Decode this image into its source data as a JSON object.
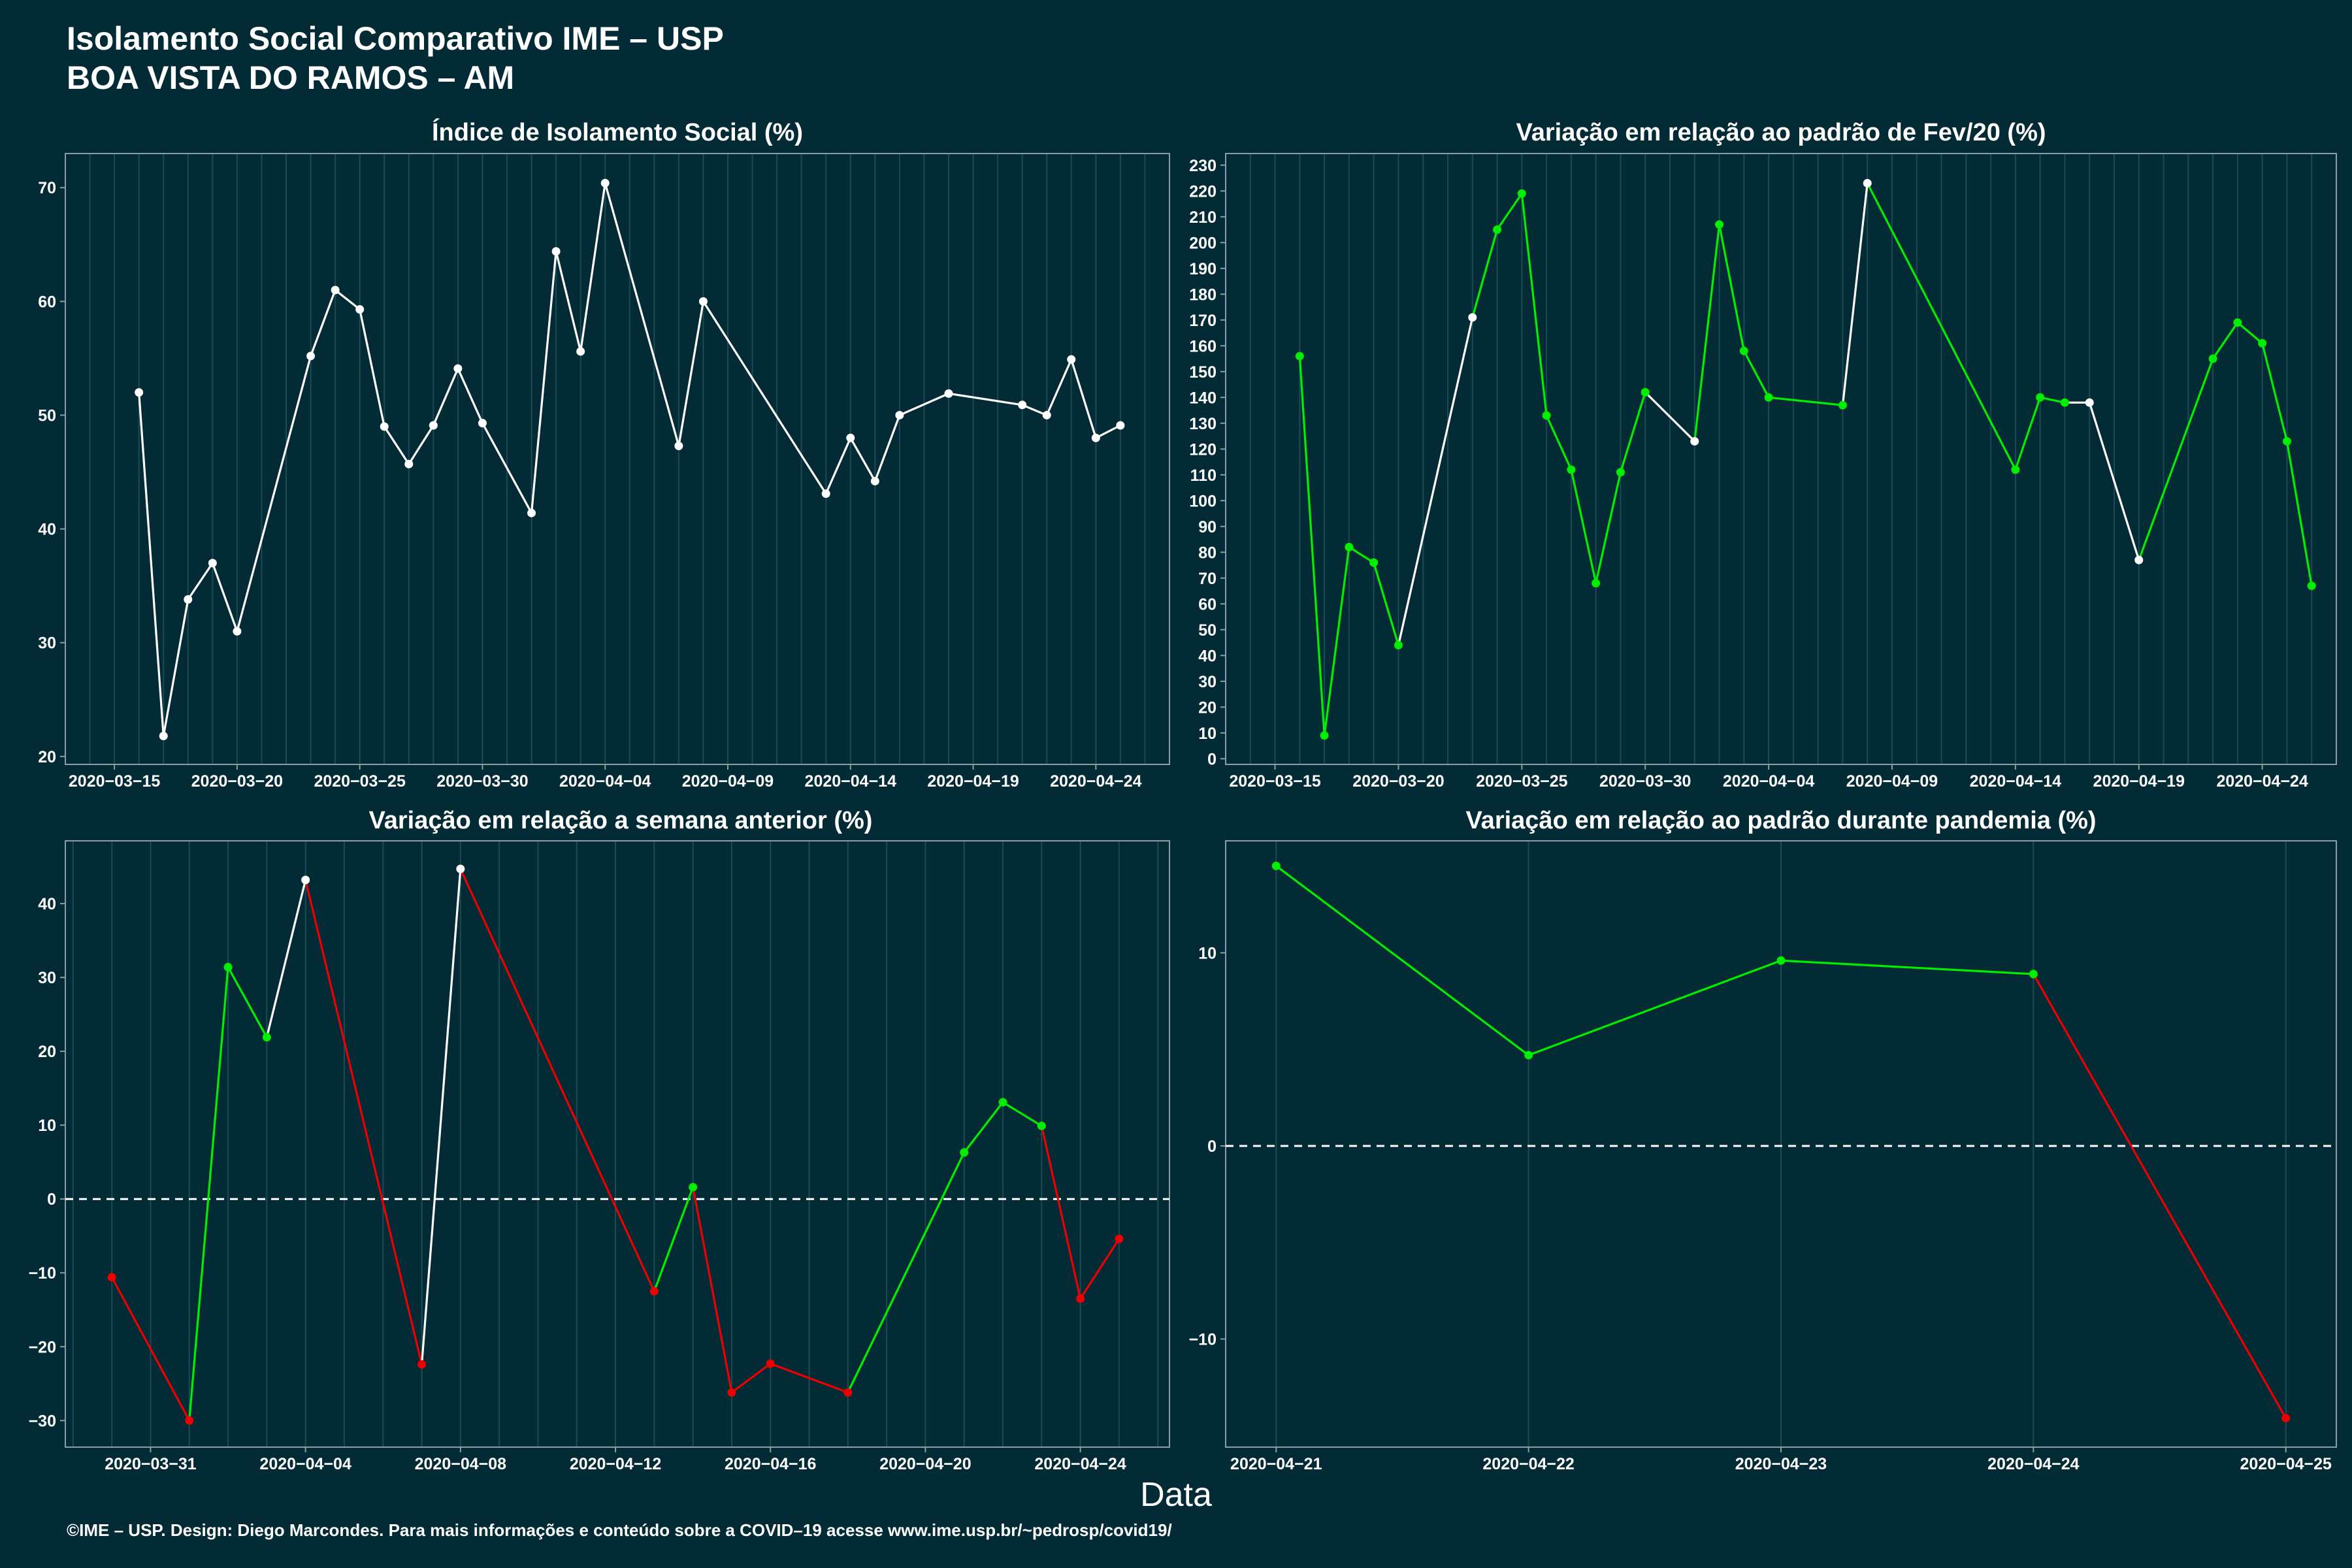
{
  "header": {
    "title": "Isolamento Social Comparativo IME – USP",
    "subtitle": "BOA VISTA DO RAMOS – AM"
  },
  "x_axis_label": "Data",
  "footer": "©IME – USP. Design: Diego Marcondes. Para mais informações e conteúdo sobre a COVID–19 acesse www.ime.usp.br/~pedrosp/covid19/",
  "colors": {
    "background": "#022b35",
    "gridline": "#1b4a54",
    "neutral_line": "#ffffff",
    "positive": "#00ee00",
    "negative": "#ee0000",
    "axis_frame": "#8a9ea3"
  },
  "chart_data": [
    {
      "type": "line",
      "title": "Índice de Isolamento Social (%)",
      "xlabel": "",
      "ylabel": "",
      "x_type": "date",
      "xlim": [
        "2020-03-13",
        "2020-04-27"
      ],
      "ylim": [
        19.3,
        73.0
      ],
      "yticks": [
        20,
        30,
        40,
        50,
        60,
        70
      ],
      "xticks": [
        "2020-03-15",
        "2020-03-20",
        "2020-03-25",
        "2020-03-30",
        "2020-04-04",
        "2020-04-09",
        "2020-04-14",
        "2020-04-19",
        "2020-04-24"
      ],
      "grid": true,
      "dashed_zero_line": false,
      "points": [
        {
          "x": "2020-03-16",
          "y": 52.0,
          "c": "w"
        },
        {
          "x": "2020-03-17",
          "y": 21.8,
          "c": "w"
        },
        {
          "x": "2020-03-18",
          "y": 33.8,
          "c": "w"
        },
        {
          "x": "2020-03-19",
          "y": 37.0,
          "c": "w"
        },
        {
          "x": "2020-03-20",
          "y": 31.0,
          "c": "w"
        },
        {
          "x": "2020-03-23",
          "y": 55.2,
          "c": "w"
        },
        {
          "x": "2020-03-24",
          "y": 61.0,
          "c": "w"
        },
        {
          "x": "2020-03-25",
          "y": 59.3,
          "c": "w"
        },
        {
          "x": "2020-03-26",
          "y": 49.0,
          "c": "w"
        },
        {
          "x": "2020-03-27",
          "y": 45.7,
          "c": "w"
        },
        {
          "x": "2020-03-28",
          "y": 49.1,
          "c": "w"
        },
        {
          "x": "2020-03-29",
          "y": 54.1,
          "c": "w"
        },
        {
          "x": "2020-03-30",
          "y": 49.3,
          "c": "w"
        },
        {
          "x": "2020-04-01",
          "y": 41.4,
          "c": "w"
        },
        {
          "x": "2020-04-02",
          "y": 64.4,
          "c": "w"
        },
        {
          "x": "2020-04-03",
          "y": 55.6,
          "c": "w"
        },
        {
          "x": "2020-04-04",
          "y": 70.4,
          "c": "w"
        },
        {
          "x": "2020-04-07",
          "y": 47.3,
          "c": "w"
        },
        {
          "x": "2020-04-08",
          "y": 60.0,
          "c": "w"
        },
        {
          "x": "2020-04-13",
          "y": 43.1,
          "c": "w"
        },
        {
          "x": "2020-04-14",
          "y": 48.0,
          "c": "w"
        },
        {
          "x": "2020-04-15",
          "y": 44.2,
          "c": "w"
        },
        {
          "x": "2020-04-16",
          "y": 50.0,
          "c": "w"
        },
        {
          "x": "2020-04-18",
          "y": 51.9,
          "c": "w"
        },
        {
          "x": "2020-04-21",
          "y": 50.9,
          "c": "w"
        },
        {
          "x": "2020-04-22",
          "y": 50.0,
          "c": "w"
        },
        {
          "x": "2020-04-23",
          "y": 54.9,
          "c": "w"
        },
        {
          "x": "2020-04-24",
          "y": 48.0,
          "c": "w"
        },
        {
          "x": "2020-04-25",
          "y": 49.1,
          "c": "w"
        }
      ]
    },
    {
      "type": "line",
      "title": "Variação em relação ao padrão de Fev/20 (%)",
      "xlabel": "",
      "ylabel": "",
      "x_type": "date",
      "xlim": [
        "2020-03-13",
        "2020-04-27"
      ],
      "ylim": [
        -2.2,
        234.5
      ],
      "yticks": [
        0,
        10,
        20,
        30,
        40,
        50,
        60,
        70,
        80,
        90,
        100,
        110,
        120,
        130,
        140,
        150,
        160,
        170,
        180,
        190,
        200,
        210,
        220,
        230
      ],
      "xticks": [
        "2020-03-15",
        "2020-03-20",
        "2020-03-25",
        "2020-03-30",
        "2020-04-04",
        "2020-04-09",
        "2020-04-14",
        "2020-04-19",
        "2020-04-24"
      ],
      "grid": true,
      "dashed_zero_line": false,
      "points": [
        {
          "x": "2020-03-16",
          "y": 156,
          "c": "g"
        },
        {
          "x": "2020-03-17",
          "y": 9,
          "c": "g"
        },
        {
          "x": "2020-03-18",
          "y": 82,
          "c": "g"
        },
        {
          "x": "2020-03-19",
          "y": 76,
          "c": "g"
        },
        {
          "x": "2020-03-20",
          "y": 44,
          "c": "g"
        },
        {
          "x": "2020-03-23",
          "y": 171,
          "c": "w"
        },
        {
          "x": "2020-03-24",
          "y": 205,
          "c": "g"
        },
        {
          "x": "2020-03-25",
          "y": 219,
          "c": "g"
        },
        {
          "x": "2020-03-26",
          "y": 133,
          "c": "g"
        },
        {
          "x": "2020-03-27",
          "y": 112,
          "c": "g"
        },
        {
          "x": "2020-03-28",
          "y": 68,
          "c": "g"
        },
        {
          "x": "2020-03-29",
          "y": 111,
          "c": "g"
        },
        {
          "x": "2020-03-30",
          "y": 142,
          "c": "g"
        },
        {
          "x": "2020-04-01",
          "y": 123,
          "c": "w"
        },
        {
          "x": "2020-04-02",
          "y": 207,
          "c": "g"
        },
        {
          "x": "2020-04-03",
          "y": 158,
          "c": "g"
        },
        {
          "x": "2020-04-04",
          "y": 140,
          "c": "g"
        },
        {
          "x": "2020-04-07",
          "y": 137,
          "c": "g"
        },
        {
          "x": "2020-04-08",
          "y": 223,
          "c": "w"
        },
        {
          "x": "2020-04-14",
          "y": 112,
          "c": "g"
        },
        {
          "x": "2020-04-15",
          "y": 140,
          "c": "g"
        },
        {
          "x": "2020-04-16",
          "y": 138,
          "c": "g"
        },
        {
          "x": "2020-04-17",
          "y": 138,
          "c": "w"
        },
        {
          "x": "2020-04-19",
          "y": 77,
          "c": "w"
        },
        {
          "x": "2020-04-22",
          "y": 155,
          "c": "g"
        },
        {
          "x": "2020-04-23",
          "y": 169,
          "c": "g"
        },
        {
          "x": "2020-04-24",
          "y": 161,
          "c": "g"
        },
        {
          "x": "2020-04-25",
          "y": 123,
          "c": "g"
        },
        {
          "x": "2020-04-26",
          "y": 67,
          "c": "g"
        }
      ]
    },
    {
      "type": "line",
      "title": "Variação em relação a semana anterior (%)",
      "xlabel": "",
      "ylabel": "",
      "x_type": "date",
      "xlim": [
        "2020-03-28.8",
        "2020-04-26.3"
      ],
      "ylim": [
        -33.6,
        48.5
      ],
      "yticks": [
        -30,
        -20,
        -10,
        0,
        10,
        20,
        30,
        40
      ],
      "xticks": [
        "2020-03-31",
        "2020-04-04",
        "2020-04-08",
        "2020-04-12",
        "2020-04-16",
        "2020-04-20",
        "2020-04-24"
      ],
      "grid": true,
      "dashed_zero_line": true,
      "points": [
        {
          "x": "2020-03-30",
          "y": -10.6,
          "c": "r"
        },
        {
          "x": "2020-04-01",
          "y": -30.0,
          "c": "r"
        },
        {
          "x": "2020-04-02",
          "y": 31.4,
          "c": "g"
        },
        {
          "x": "2020-04-03",
          "y": 21.9,
          "c": "g"
        },
        {
          "x": "2020-04-04",
          "y": 43.2,
          "c": "w"
        },
        {
          "x": "2020-04-07",
          "y": -22.4,
          "c": "r"
        },
        {
          "x": "2020-04-08",
          "y": 44.7,
          "c": "w"
        },
        {
          "x": "2020-04-13",
          "y": -12.5,
          "c": "r"
        },
        {
          "x": "2020-04-14",
          "y": 1.6,
          "c": "g"
        },
        {
          "x": "2020-04-15",
          "y": -26.2,
          "c": "r"
        },
        {
          "x": "2020-04-16",
          "y": -22.3,
          "c": "r"
        },
        {
          "x": "2020-04-18",
          "y": -26.2,
          "c": "r"
        },
        {
          "x": "2020-04-21",
          "y": 6.3,
          "c": "g"
        },
        {
          "x": "2020-04-22",
          "y": 13.1,
          "c": "g"
        },
        {
          "x": "2020-04-23",
          "y": 9.9,
          "c": "g"
        },
        {
          "x": "2020-04-24",
          "y": -13.5,
          "c": "r"
        },
        {
          "x": "2020-04-25",
          "y": -5.4,
          "c": "r"
        }
      ]
    },
    {
      "type": "line",
      "title": "Variação em relação ao padrão durante pandemia (%)",
      "xlabel": "",
      "ylabel": "",
      "x_type": "date",
      "xlim": [
        "2020-04-20.8",
        "2020-04-25.2"
      ],
      "ylim": [
        -15.6,
        15.8
      ],
      "yticks": [
        -10,
        0,
        10
      ],
      "xticks": [
        "2020-04-21",
        "2020-04-22",
        "2020-04-23",
        "2020-04-24",
        "2020-04-25"
      ],
      "grid": true,
      "dashed_zero_line": true,
      "points": [
        {
          "x": "2020-04-21",
          "y": 14.5,
          "c": "g"
        },
        {
          "x": "2020-04-22",
          "y": 4.7,
          "c": "g"
        },
        {
          "x": "2020-04-23",
          "y": 9.6,
          "c": "g"
        },
        {
          "x": "2020-04-24",
          "y": 8.9,
          "c": "g"
        },
        {
          "x": "2020-04-25",
          "y": -14.1,
          "c": "r"
        }
      ]
    }
  ]
}
